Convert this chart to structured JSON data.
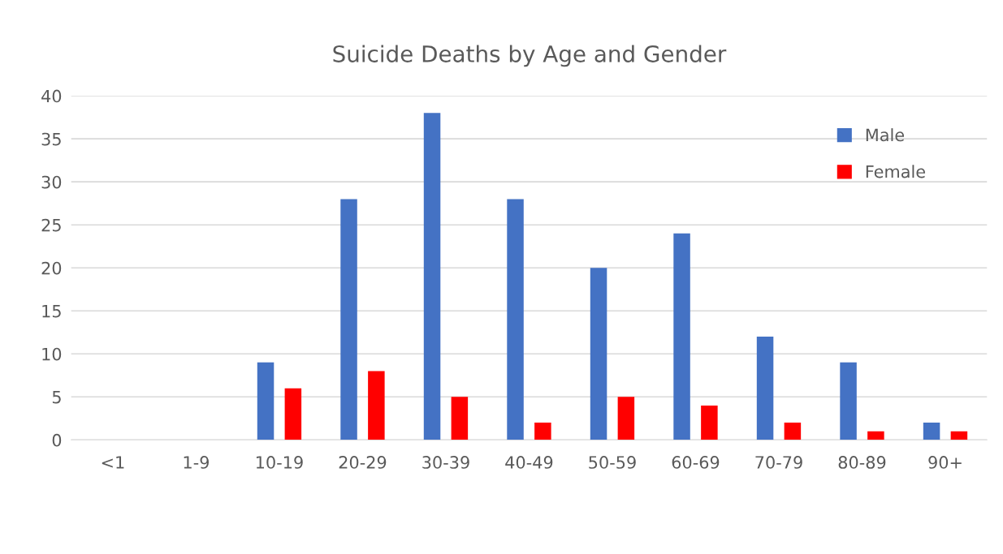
{
  "chart_data": {
    "type": "bar",
    "title": "Suicide Deaths by Age and Gender",
    "categories": [
      "<1",
      "1-9",
      "10-19",
      "20-29",
      "30-39",
      "40-49",
      "50-59",
      "60-69",
      "70-79",
      "80-89",
      "90+"
    ],
    "series": [
      {
        "name": "Male",
        "color": "#4472c4",
        "values": [
          0,
          0,
          9,
          28,
          38,
          28,
          20,
          24,
          12,
          9,
          2
        ]
      },
      {
        "name": "Female",
        "color": "#ff0000",
        "values": [
          0,
          0,
          6,
          8,
          5,
          2,
          5,
          4,
          2,
          1,
          1
        ]
      }
    ],
    "ylim": [
      0,
      40
    ],
    "yticks": [
      0,
      5,
      10,
      15,
      20,
      25,
      30,
      35,
      40
    ],
    "grid": "y",
    "legend": "top right"
  }
}
